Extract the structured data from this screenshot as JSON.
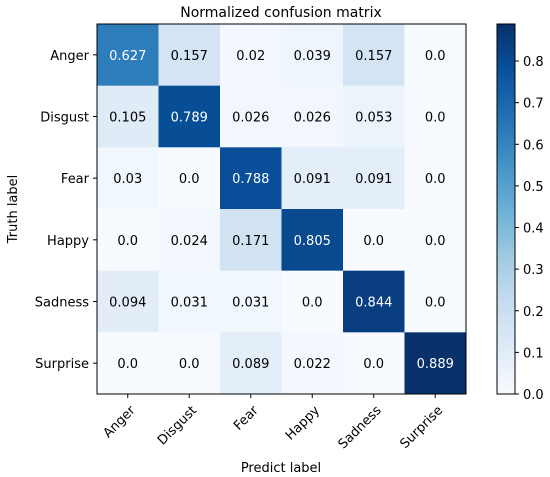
{
  "chart_data": {
    "type": "heatmap",
    "title": "Normalized confusion matrix",
    "xlabel": "Predict label",
    "ylabel": "Truth label",
    "x_categories": [
      "Anger",
      "Disgust",
      "Fear",
      "Happy",
      "Sadness",
      "Surprise"
    ],
    "y_categories": [
      "Anger",
      "Disgust",
      "Fear",
      "Happy",
      "Sadness",
      "Surprise"
    ],
    "values": [
      [
        0.627,
        0.157,
        0.02,
        0.039,
        0.157,
        0.0
      ],
      [
        0.105,
        0.789,
        0.026,
        0.026,
        0.053,
        0.0
      ],
      [
        0.03,
        0.0,
        0.788,
        0.091,
        0.091,
        0.0
      ],
      [
        0.0,
        0.024,
        0.171,
        0.805,
        0.0,
        0.0
      ],
      [
        0.094,
        0.031,
        0.031,
        0.0,
        0.844,
        0.0
      ],
      [
        0.0,
        0.0,
        0.089,
        0.022,
        0.0,
        0.889
      ]
    ],
    "colorscale": "Blues",
    "colorbar": {
      "range": [
        0.0,
        0.889
      ],
      "ticks": [
        0.0,
        0.1,
        0.2,
        0.3,
        0.4,
        0.5,
        0.6,
        0.7,
        0.8
      ],
      "tick_labels": [
        "0.0",
        "0.1",
        "0.2",
        "0.3",
        "0.4",
        "0.5",
        "0.6",
        "0.7",
        "0.8"
      ]
    }
  }
}
